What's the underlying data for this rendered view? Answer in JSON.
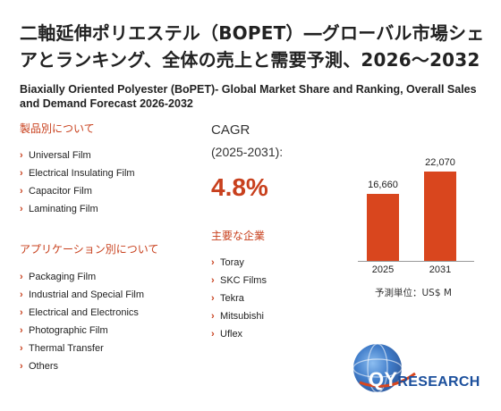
{
  "title_jp": "二軸延伸ポリエステル（BOPET）―グローバル市場シェアとランキング、全体の売上と需要予測、2026～2032",
  "title_en": "Biaxially Oriented Polyester (BoPET)- Global Market Share and Ranking, Overall Sales and Demand Forecast 2026-2032",
  "product_section": {
    "heading": "製品別について",
    "items": [
      "Universal Film",
      "Electrical Insulating Film",
      "Capacitor Film",
      "Laminating Film"
    ]
  },
  "application_section": {
    "heading": "アプリケーション別について",
    "items": [
      "Packaging Film",
      "Industrial and Special Film",
      "Electrical and Electronics",
      "Photographic Film",
      "Thermal Transfer",
      "Others"
    ]
  },
  "cagr": {
    "label": "CAGR",
    "period": "(2025-2031):",
    "value": "4.8%"
  },
  "players_section": {
    "heading": "主要な企業",
    "items": [
      "Toray",
      "SKC Films",
      "Tekra",
      "Mitsubishi",
      "Uflex"
    ]
  },
  "chart_data": {
    "type": "bar",
    "categories": [
      "2025",
      "2031"
    ],
    "values": [
      16660,
      22070
    ],
    "value_labels": [
      "16,660",
      "22,070"
    ],
    "unit_label": "予測単位：US$ M",
    "bar_color": "#d9461e"
  },
  "logo": {
    "brand_qy": "QY",
    "brand_research": "RESEARCH"
  }
}
